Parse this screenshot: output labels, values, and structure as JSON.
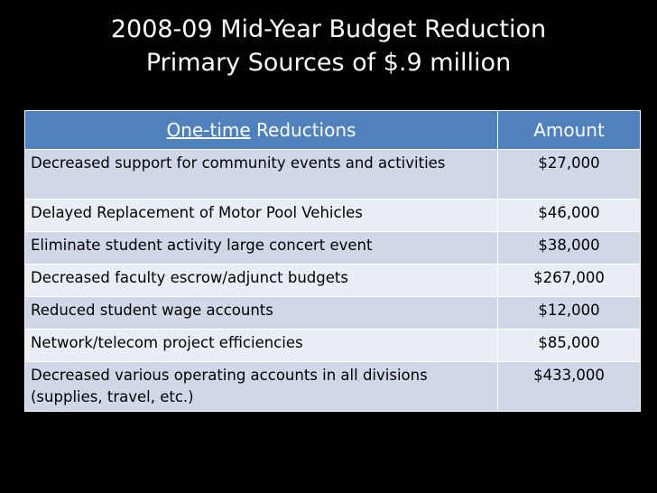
{
  "title": {
    "line1": "2008-09 Mid-Year Budget Reduction",
    "line2": "Primary Sources of $.9 million"
  },
  "table": {
    "header": {
      "col1_underlined": "One-time",
      "col1_rest": " Reductions",
      "col2": "Amount"
    },
    "rows": [
      {
        "description": "Decreased support for community events and activities",
        "amount": "$27,000"
      },
      {
        "description": "Delayed Replacement of Motor Pool Vehicles",
        "amount": "$46,000"
      },
      {
        "description": "Eliminate student activity large concert event",
        "amount": "$38,000"
      },
      {
        "description": "Decreased faculty escrow/adjunct budgets",
        "amount": "$267,000"
      },
      {
        "description": "Reduced student wage accounts",
        "amount": "$12,000"
      },
      {
        "description": "Network/telecom project efficiencies",
        "amount": "$85,000"
      },
      {
        "description": "Decreased various operating accounts in all divisions (supplies, travel, etc.)",
        "amount": "$433,000"
      }
    ]
  },
  "colors": {
    "background": "#000000",
    "header_fill": "#4f81bd",
    "row_dark": "#d0d8e8",
    "row_light": "#e9edf4"
  }
}
